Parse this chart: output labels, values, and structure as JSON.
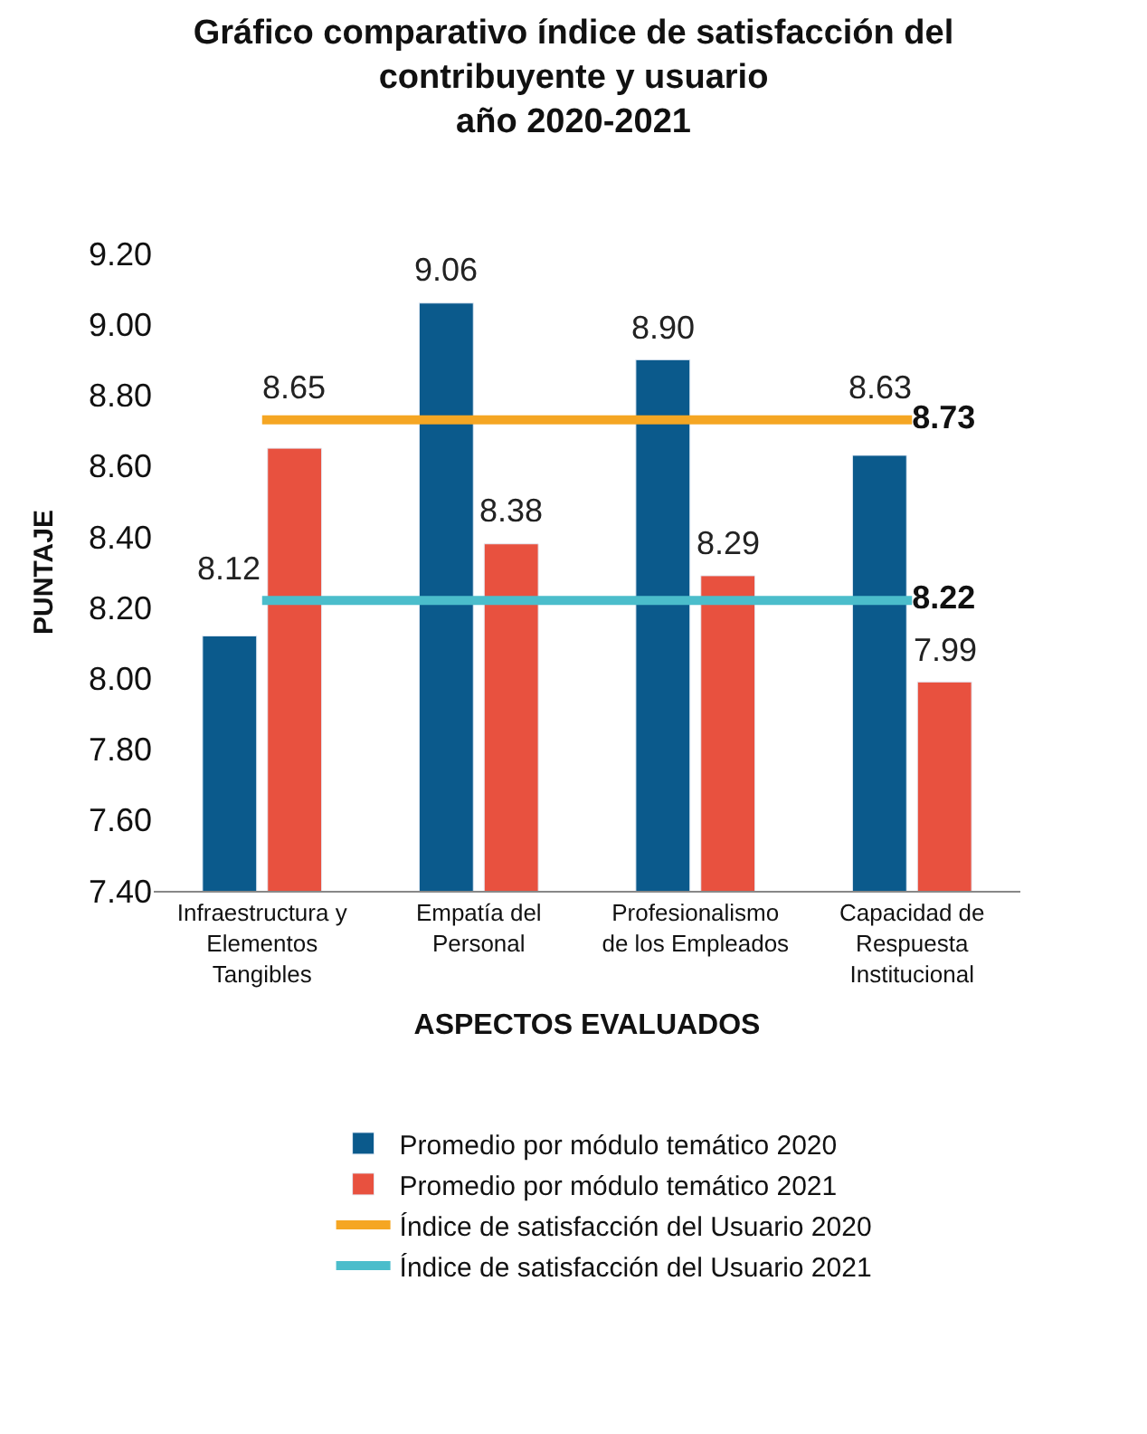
{
  "chart_data": {
    "type": "bar",
    "title": "Gráfico comparativo índice de satisfacción del\ncontribuyente y usuario\naño 2020-2021",
    "xlabel": "ASPECTOS EVALUADOS",
    "ylabel": "PUNTAJE",
    "categories": [
      "Infraestructura y\nElementos\nTangibles",
      "Empatía del\nPersonal",
      "Profesionalismo\nde los Empleados",
      "Capacidad de\nRespuesta\nInstitucional"
    ],
    "series": [
      {
        "name": "Promedio por módulo temático 2020",
        "color": "#0b5a8c",
        "values": [
          8.12,
          9.06,
          8.9,
          8.63
        ],
        "value_labels": [
          "8.12",
          "9.06",
          "8.90",
          "8.63"
        ]
      },
      {
        "name": "Promedio por módulo temático 2021",
        "color": "#e8513f",
        "values": [
          8.65,
          8.38,
          8.29,
          7.99
        ],
        "value_labels": [
          "8.65",
          "8.38",
          "8.29",
          "7.99"
        ]
      },
      {
        "name": "Índice de satisfacción del Usuario 2020",
        "type": "line",
        "color": "#f5a623",
        "values": [
          8.73,
          8.73,
          8.73,
          8.73
        ],
        "value_labels": [
          null,
          null,
          null,
          "8.73"
        ]
      },
      {
        "name": "Índice de satisfacción del Usuario 2021",
        "type": "line",
        "color": "#4bbdcb",
        "values": [
          8.22,
          8.22,
          8.22,
          8.22
        ],
        "value_labels": [
          null,
          null,
          null,
          "8.22"
        ]
      }
    ],
    "ylim": [
      7.4,
      9.2
    ],
    "yticks": [
      {
        "value": 7.4,
        "label": "7.40"
      },
      {
        "value": 7.6,
        "label": "7.60"
      },
      {
        "value": 7.8,
        "label": "7.80"
      },
      {
        "value": 8.0,
        "label": "8.00"
      },
      {
        "value": 8.2,
        "label": "8.20"
      },
      {
        "value": 8.4,
        "label": "8.40"
      },
      {
        "value": 8.6,
        "label": "8.60"
      },
      {
        "value": 8.8,
        "label": "8.80"
      },
      {
        "value": 9.0,
        "label": "9.00"
      },
      {
        "value": 9.2,
        "label": "9.20"
      }
    ],
    "grid": false,
    "legend": "bottom"
  }
}
